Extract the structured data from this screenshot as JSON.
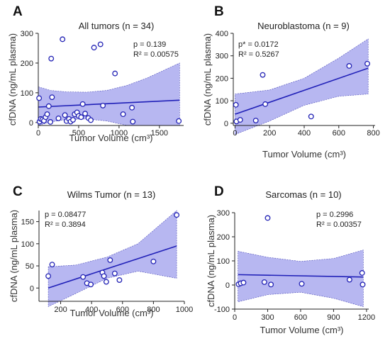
{
  "chart_data": [
    {
      "id": "A",
      "type": "scatter",
      "panel_label": "A",
      "title": "All tumors (n = 34)",
      "xlabel": "Tumor Volume (cm³)",
      "ylabel": "cfDNA (ng/mL plasma)",
      "xlim": [
        0,
        1800
      ],
      "ylim": [
        -10,
        300
      ],
      "xticks": [
        0,
        500,
        1000,
        1500
      ],
      "yticks": [
        0,
        100,
        200,
        300
      ],
      "xtick_labels": [
        "0",
        "500",
        "1000",
        "1500"
      ],
      "ytick_labels": [
        "0",
        "100",
        "200",
        "300"
      ],
      "stats": [
        "p = 0.139",
        "R² = 0.00575"
      ],
      "fit": {
        "x": [
          0,
          1750
        ],
        "y": [
          52,
          75
        ]
      },
      "band": {
        "x": [
          0,
          150,
          350,
          600,
          850,
          1100,
          1350,
          1750
        ],
        "upper": [
          120,
          108,
          103,
          102,
          108,
          125,
          150,
          200
        ],
        "lower": [
          -10,
          2,
          10,
          12,
          5,
          -10,
          -10,
          -10
        ]
      },
      "points": [
        {
          "x": 10,
          "y": 82
        },
        {
          "x": 15,
          "y": 3
        },
        {
          "x": 30,
          "y": 12
        },
        {
          "x": 50,
          "y": 10
        },
        {
          "x": 70,
          "y": 6
        },
        {
          "x": 90,
          "y": 18
        },
        {
          "x": 110,
          "y": 28
        },
        {
          "x": 130,
          "y": 55
        },
        {
          "x": 150,
          "y": 2
        },
        {
          "x": 160,
          "y": 215
        },
        {
          "x": 170,
          "y": 85
        },
        {
          "x": 250,
          "y": 14
        },
        {
          "x": 300,
          "y": 280
        },
        {
          "x": 330,
          "y": 25
        },
        {
          "x": 350,
          "y": 5
        },
        {
          "x": 380,
          "y": 12
        },
        {
          "x": 400,
          "y": 3
        },
        {
          "x": 430,
          "y": 9
        },
        {
          "x": 450,
          "y": 28
        },
        {
          "x": 480,
          "y": 34
        },
        {
          "x": 500,
          "y": 22
        },
        {
          "x": 530,
          "y": 18
        },
        {
          "x": 550,
          "y": 62
        },
        {
          "x": 580,
          "y": 30
        },
        {
          "x": 620,
          "y": 15
        },
        {
          "x": 650,
          "y": 8
        },
        {
          "x": 690,
          "y": 252
        },
        {
          "x": 770,
          "y": 263
        },
        {
          "x": 800,
          "y": 57
        },
        {
          "x": 950,
          "y": 165
        },
        {
          "x": 1050,
          "y": 28
        },
        {
          "x": 1160,
          "y": 50
        },
        {
          "x": 1170,
          "y": 3
        },
        {
          "x": 1740,
          "y": 5
        }
      ]
    },
    {
      "id": "B",
      "type": "scatter",
      "panel_label": "B",
      "title": "Neuroblastoma (n = 9)",
      "xlabel": "Tumor Volume (cm³)",
      "ylabel": "cfDNA (ng/mL plasma)",
      "xlim": [
        -10,
        810
      ],
      "ylim": [
        -10,
        400
      ],
      "xticks": [
        0,
        200,
        400,
        600,
        800
      ],
      "yticks": [
        0,
        100,
        200,
        300,
        400
      ],
      "xtick_labels": [
        "0",
        "200",
        "400",
        "600",
        "800"
      ],
      "ytick_labels": [
        "0",
        "100",
        "200",
        "300",
        "400"
      ],
      "stats": [
        "p* = 0.0172",
        "R² = 0.5267"
      ],
      "fit": {
        "x": [
          0,
          770
        ],
        "y": [
          40,
          245
        ]
      },
      "band": {
        "x": [
          0,
          200,
          400,
          600,
          770
        ],
        "upper": [
          130,
          148,
          200,
          290,
          375
        ],
        "lower": [
          -50,
          10,
          80,
          120,
          130
        ]
      },
      "points": [
        {
          "x": 5,
          "y": 82
        },
        {
          "x": 8,
          "y": 8
        },
        {
          "x": 30,
          "y": 15
        },
        {
          "x": 120,
          "y": 12
        },
        {
          "x": 160,
          "y": 215
        },
        {
          "x": 175,
          "y": 85
        },
        {
          "x": 440,
          "y": 30
        },
        {
          "x": 660,
          "y": 255
        },
        {
          "x": 765,
          "y": 265
        }
      ]
    },
    {
      "id": "C",
      "type": "scatter",
      "panel_label": "C",
      "title": "Wilms Tumor (n = 13)",
      "xlabel": "Tumor Volume (cm³)",
      "ylabel": "cfDNA (ng/mL plasma)",
      "xlim": [
        60,
        1000
      ],
      "ylim": [
        -30,
        175
      ],
      "xticks": [
        200,
        400,
        600,
        800,
        1000
      ],
      "yticks": [
        0,
        50,
        100,
        150
      ],
      "xtick_labels": [
        "200",
        "400",
        "600",
        "800",
        "1000"
      ],
      "ytick_labels": [
        "0",
        "50",
        "100",
        "150"
      ],
      "stats": [
        "p = 0.08477",
        "R² = 0.3894"
      ],
      "fit": {
        "x": [
          120,
          950
        ],
        "y": [
          0,
          95
        ]
      },
      "band": {
        "x": [
          120,
          300,
          500,
          700,
          950
        ],
        "upper": [
          48,
          52,
          70,
          100,
          175
        ],
        "lower": [
          -42,
          -12,
          22,
          38,
          22
        ]
      },
      "points": [
        {
          "x": 120,
          "y": 27
        },
        {
          "x": 145,
          "y": 53
        },
        {
          "x": 345,
          "y": 25
        },
        {
          "x": 370,
          "y": 11
        },
        {
          "x": 395,
          "y": 8
        },
        {
          "x": 470,
          "y": 35
        },
        {
          "x": 480,
          "y": 27
        },
        {
          "x": 495,
          "y": 14
        },
        {
          "x": 520,
          "y": 63
        },
        {
          "x": 550,
          "y": 33
        },
        {
          "x": 580,
          "y": 18
        },
        {
          "x": 800,
          "y": 60
        },
        {
          "x": 950,
          "y": 165
        }
      ]
    },
    {
      "id": "D",
      "type": "scatter",
      "panel_label": "D",
      "title": "Sarcomas (n = 10)",
      "xlabel": "Tumor Volume (cm³)",
      "ylabel": "cfDNA (ng/mL plasma)",
      "xlim": [
        0,
        1220
      ],
      "ylim": [
        -100,
        300
      ],
      "xticks": [
        0,
        300,
        600,
        900,
        1200
      ],
      "yticks": [
        -100,
        0,
        100,
        200,
        300
      ],
      "xtick_labels": [
        "0",
        "300",
        "600",
        "900",
        "1200"
      ],
      "ytick_labels": [
        "-100",
        "0",
        "100",
        "200",
        "300"
      ],
      "stats": [
        "p = 0.2996",
        "R² = 0.00357"
      ],
      "fit": {
        "x": [
          30,
          1170
        ],
        "y": [
          43,
          33
        ]
      },
      "band": {
        "x": [
          30,
          300,
          600,
          900,
          1170
        ],
        "upper": [
          140,
          115,
          98,
          110,
          145
        ],
        "lower": [
          -70,
          -40,
          -30,
          -55,
          -90
        ]
      },
      "points": [
        {
          "x": 35,
          "y": 3
        },
        {
          "x": 55,
          "y": 7
        },
        {
          "x": 80,
          "y": 10
        },
        {
          "x": 270,
          "y": 12
        },
        {
          "x": 300,
          "y": 278
        },
        {
          "x": 330,
          "y": 2
        },
        {
          "x": 610,
          "y": 5
        },
        {
          "x": 1045,
          "y": 22
        },
        {
          "x": 1160,
          "y": 50
        },
        {
          "x": 1165,
          "y": 2
        }
      ]
    }
  ]
}
